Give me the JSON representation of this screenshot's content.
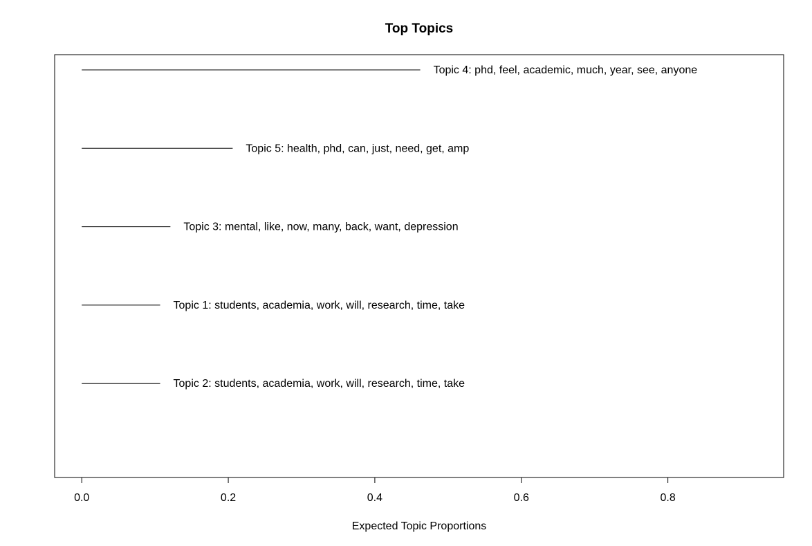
{
  "chart_data": {
    "type": "bar",
    "title": "Top Topics",
    "xlabel": "Expected Topic Proportions",
    "ylabel": "",
    "xlim": [
      -0.037,
      0.958
    ],
    "x_ticks": [
      0.0,
      0.2,
      0.4,
      0.6,
      0.8
    ],
    "x_tick_labels": [
      "0.0",
      "0.2",
      "0.4",
      "0.6",
      "0.8"
    ],
    "grid": false,
    "orientation": "horizontal",
    "categories": [
      "Topic 4: phd, feel, academic, much, year, see, anyone",
      "Topic 5: health, phd, can, just, need, get, amp",
      "Topic 3: mental, like, now, many, back, want, depression",
      "Topic 1: students, academia, work, will, research, time, take",
      "Topic 2: students, academia, work, will, research, time, take"
    ],
    "values": [
      0.462,
      0.206,
      0.121,
      0.107,
      0.107
    ]
  }
}
